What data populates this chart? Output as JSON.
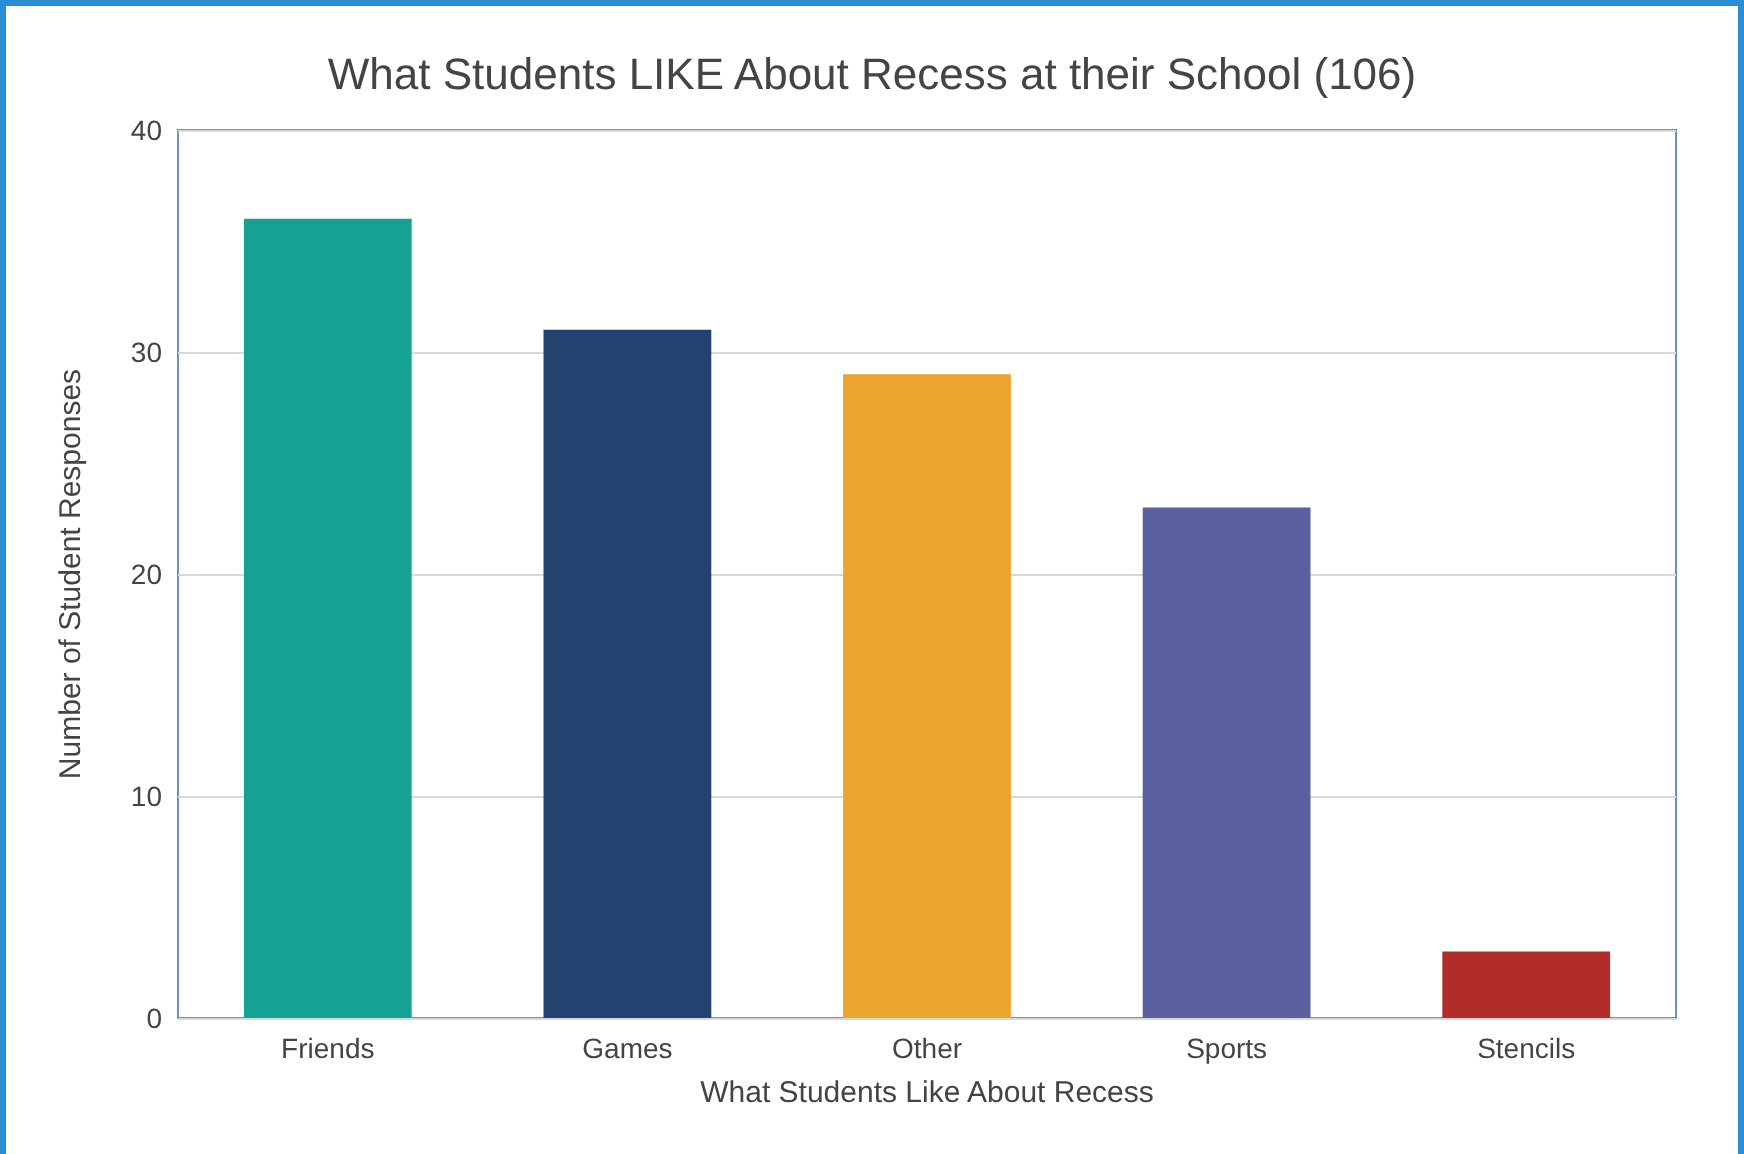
{
  "chart_data": {
    "type": "bar",
    "title": "What Students LIKE About Recess at their School (106)",
    "xlabel": "What Students Like About Recess",
    "ylabel": "Number of Student Responses",
    "categories": [
      "Friends",
      "Games",
      "Other",
      "Sports",
      "Stencils"
    ],
    "values": [
      36,
      31,
      29,
      23,
      3
    ],
    "colors": [
      "#16a292",
      "#22426f",
      "#eba52e",
      "#5a5f9d",
      "#b02d2a"
    ],
    "ylim": [
      0,
      40
    ],
    "yticks": [
      0,
      10,
      20,
      30,
      40
    ],
    "grid": "y"
  }
}
